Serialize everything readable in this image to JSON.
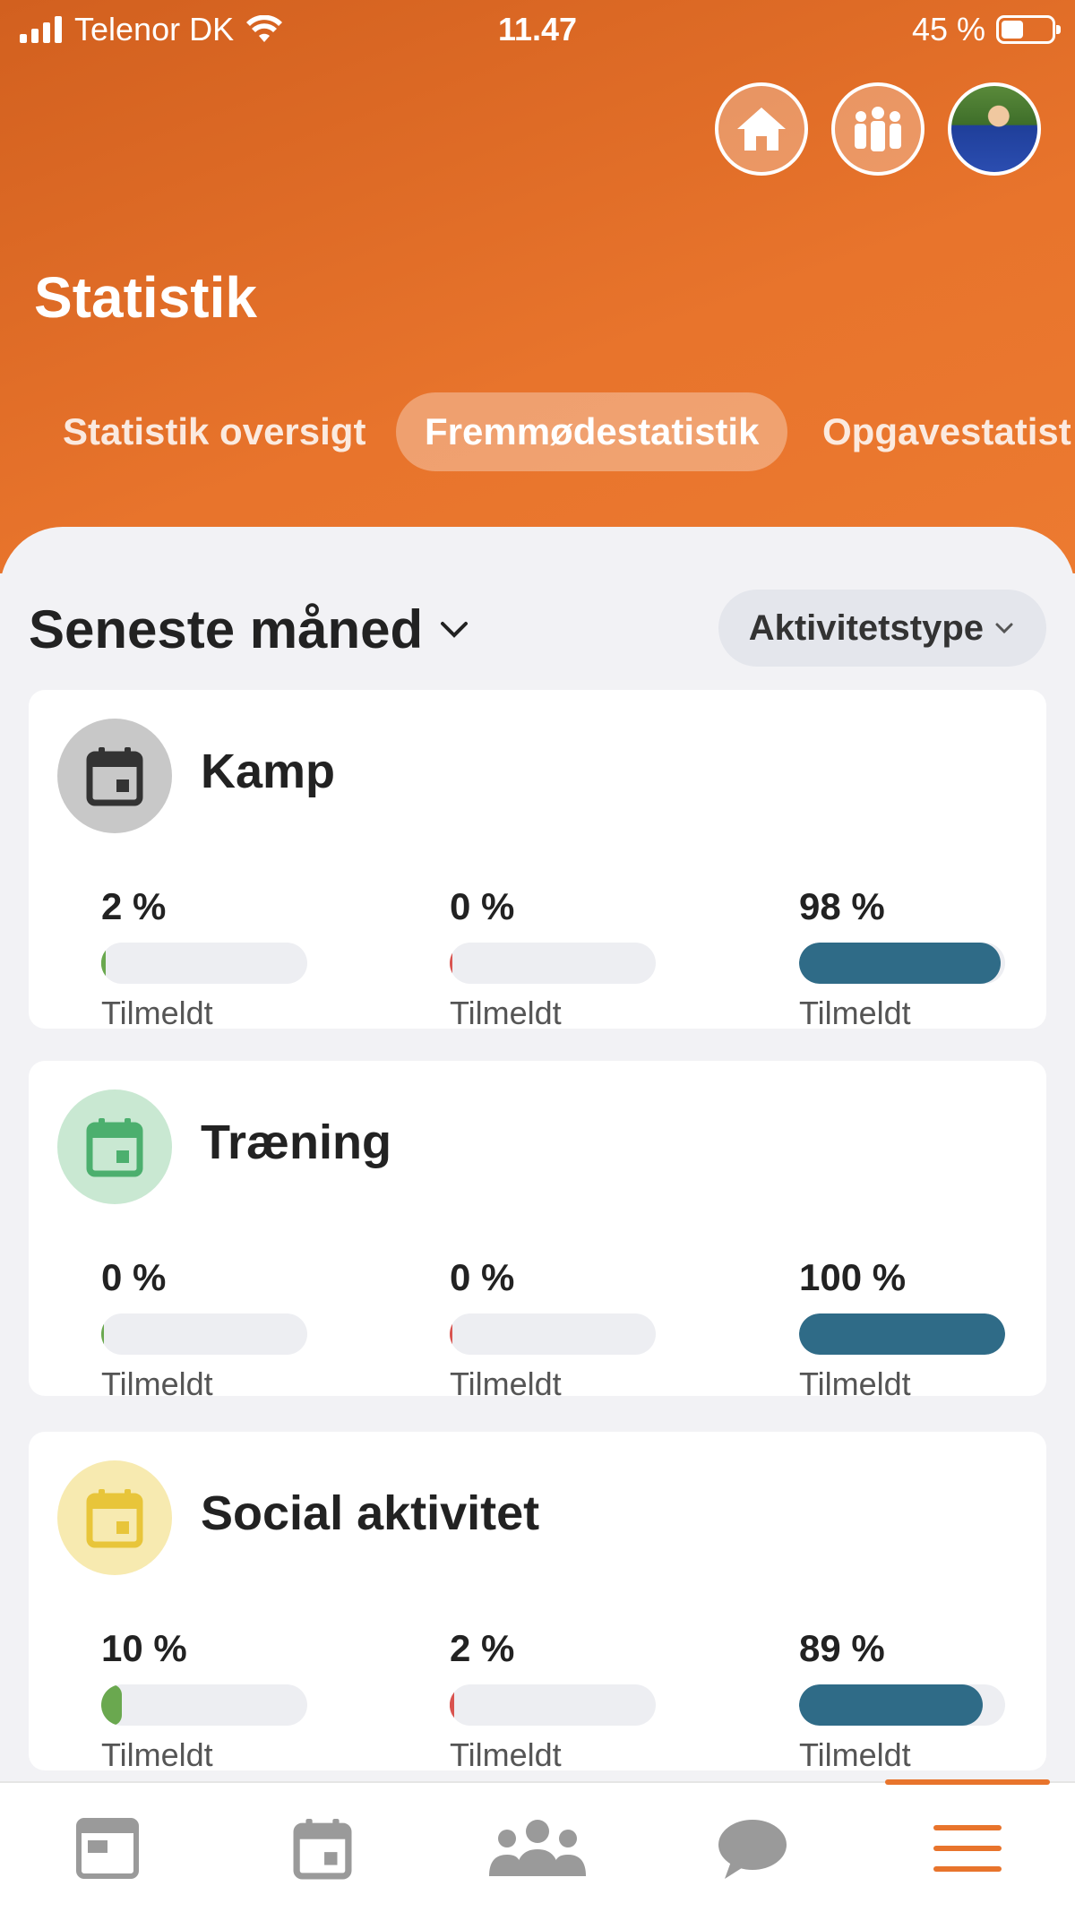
{
  "status_bar": {
    "carrier": "Telenor DK",
    "time": "11.47",
    "battery": "45 %"
  },
  "header": {
    "title": "Statistik",
    "icons": [
      "home-icon",
      "team-icon",
      "profile-avatar"
    ]
  },
  "tabs": [
    {
      "label": "Statistik oversigt",
      "active": false
    },
    {
      "label": "Fremmødestatistik",
      "active": true
    },
    {
      "label": "Opgavestatist",
      "active": false
    }
  ],
  "filters": {
    "period": "Seneste måned",
    "activity_type": "Aktivitetstype"
  },
  "cards": [
    {
      "title": "Kamp",
      "icon_color": "#c8c8c8",
      "icon_glyph_color": "#333333",
      "stats": [
        {
          "value": "2 %",
          "label": "Tilmeldt",
          "fraction": 0.02,
          "color": "#6aa84f"
        },
        {
          "value": "0 %",
          "label": "Tilmeldt",
          "fraction": 0.0,
          "color": "#d9534f"
        },
        {
          "value": "98 %",
          "label": "Tilmeldt",
          "fraction": 0.98,
          "color": "#2f6b87"
        }
      ]
    },
    {
      "title": "Træning",
      "icon_color": "#c9e8d2",
      "icon_glyph_color": "#4caf6e",
      "stats": [
        {
          "value": "0 %",
          "label": "Tilmeldt",
          "fraction": 0.0,
          "color": "#6aa84f"
        },
        {
          "value": "0 %",
          "label": "Tilmeldt",
          "fraction": 0.0,
          "color": "#d9534f"
        },
        {
          "value": "100 %",
          "label": "Tilmeldt",
          "fraction": 1.0,
          "color": "#2f6b87"
        }
      ]
    },
    {
      "title": "Social aktivitet",
      "icon_color": "#f7eab0",
      "icon_glyph_color": "#e8c53a",
      "stats": [
        {
          "value": "10 %",
          "label": "Tilmeldt",
          "fraction": 0.1,
          "color": "#6aa84f"
        },
        {
          "value": "2 %",
          "label": "Tilmeldt",
          "fraction": 0.02,
          "color": "#d9534f"
        },
        {
          "value": "89 %",
          "label": "Tilmeldt",
          "fraction": 0.89,
          "color": "#2f6b87"
        }
      ]
    }
  ],
  "bottom_nav": [
    {
      "icon": "news-icon",
      "active": false
    },
    {
      "icon": "calendar-icon",
      "active": false
    },
    {
      "icon": "group-icon",
      "active": false
    },
    {
      "icon": "chat-icon",
      "active": false
    },
    {
      "icon": "menu-icon",
      "active": true
    }
  ],
  "colors": {
    "accent": "#e8742c",
    "bar_track": "#edeef2",
    "nav_icon": "#9a9a9a"
  }
}
